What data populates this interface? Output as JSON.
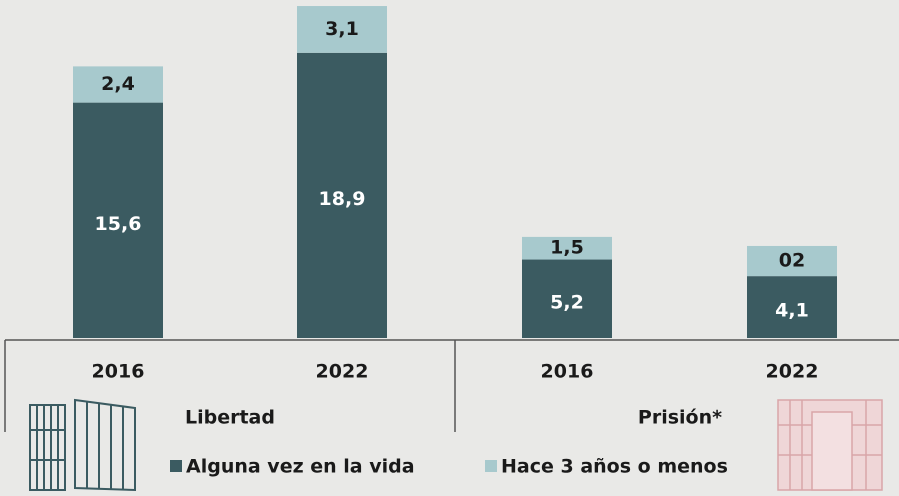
{
  "chart_data": {
    "type": "stacked_bar",
    "categories": [
      "2016",
      "2022",
      "2016",
      "2022"
    ],
    "groups": [
      {
        "name": "Libertad",
        "members": [
          0,
          1
        ]
      },
      {
        "name": "Prisión*",
        "members": [
          2,
          3
        ]
      }
    ],
    "series": [
      {
        "name": "Alguna vez en la vida",
        "color": "#3b5b61",
        "values": [
          15.6,
          18.9,
          5.2,
          4.1
        ],
        "value_labels": [
          "15,6",
          "18,9",
          "5,2",
          "4,1"
        ]
      },
      {
        "name": "Hace 3 años o menos",
        "color": "#a7c9cd",
        "values": [
          2.4,
          3.1,
          1.5,
          2
        ],
        "value_labels": [
          "2,4",
          "3,1",
          "1,5",
          "02"
        ]
      }
    ],
    "ylim": [
      0,
      22.4
    ]
  }
}
